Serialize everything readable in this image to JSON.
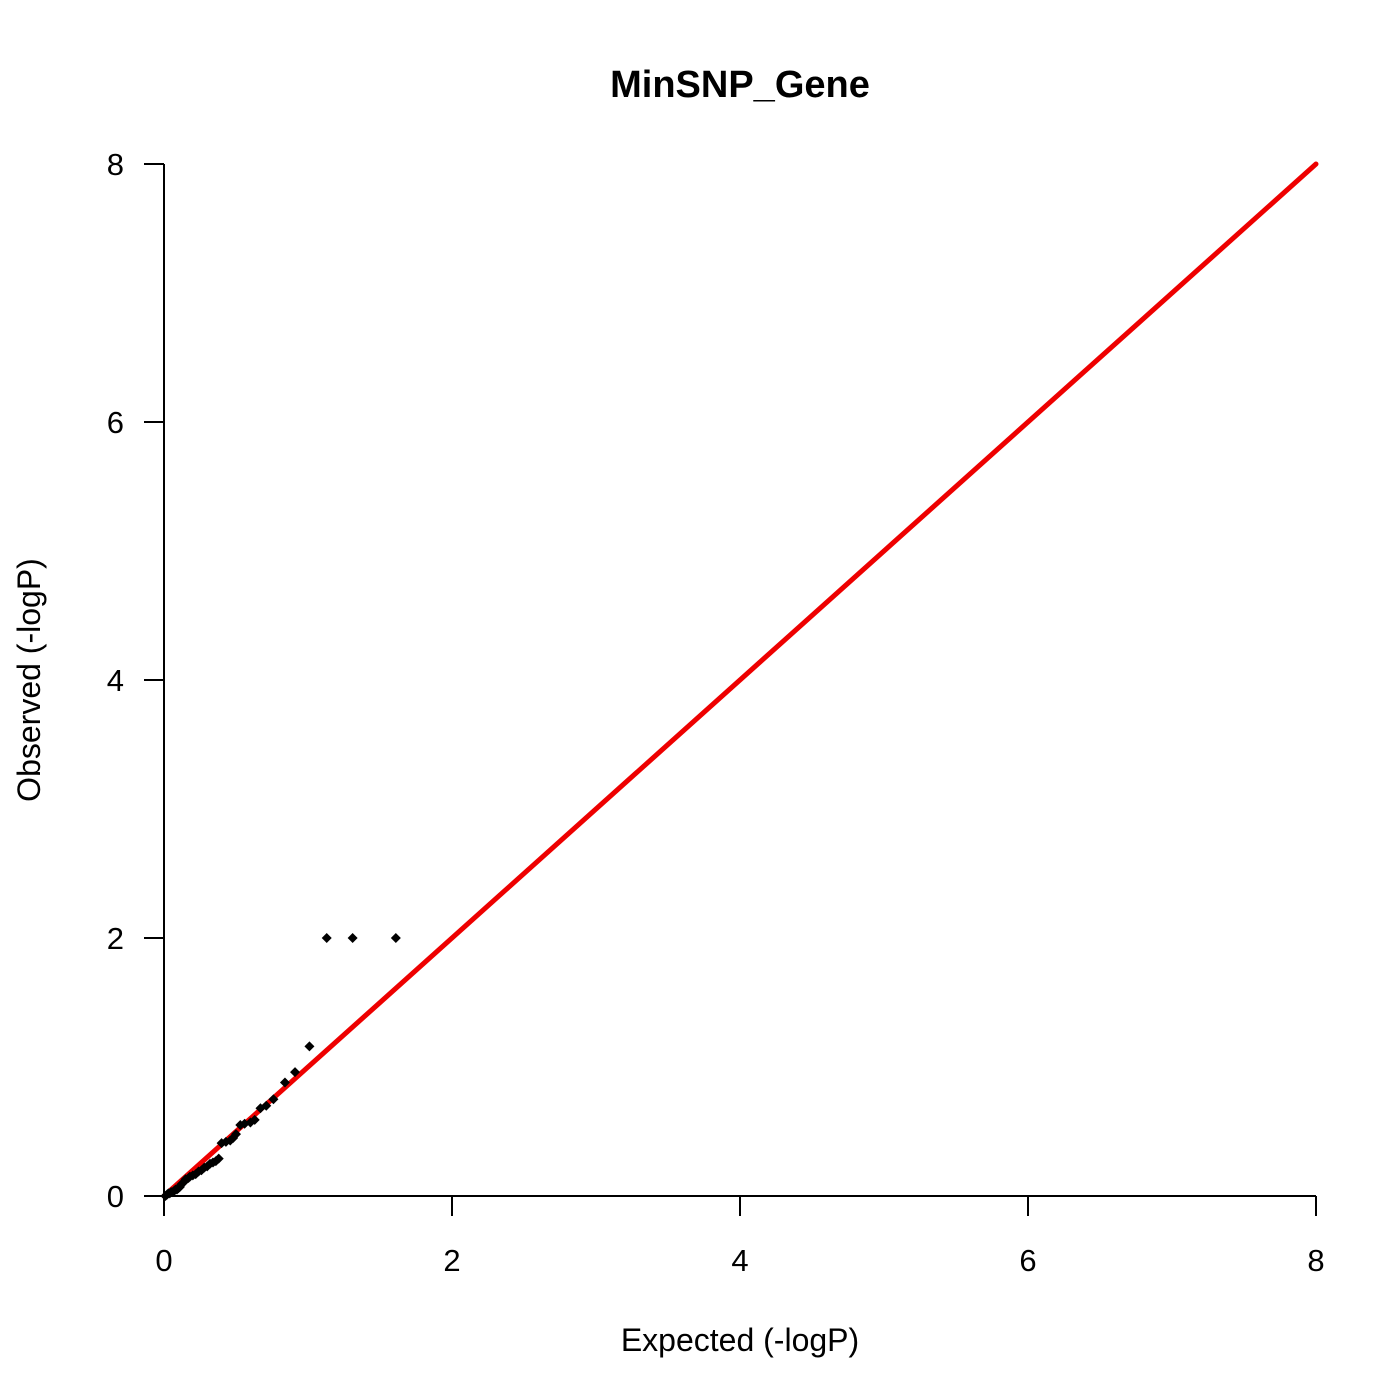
{
  "chart_data": {
    "type": "scatter",
    "title": "MinSNP_Gene",
    "xlabel": "Expected (-logP)",
    "ylabel": "Observed (-logP)",
    "xlim": [
      0,
      8
    ],
    "ylim": [
      0,
      8
    ],
    "x_ticks": [
      "0",
      "2",
      "4",
      "6",
      "8"
    ],
    "y_ticks": [
      "0",
      "2",
      "4",
      "6",
      "8"
    ],
    "grid": false,
    "reference_line": {
      "from": [
        0,
        0
      ],
      "to": [
        8,
        8
      ],
      "color": "#ee0000"
    },
    "point_color": "#000000",
    "points": [
      [
        0.01,
        0.0
      ],
      [
        0.02,
        0.01
      ],
      [
        0.03,
        0.02
      ],
      [
        0.04,
        0.02
      ],
      [
        0.05,
        0.03
      ],
      [
        0.06,
        0.03
      ],
      [
        0.07,
        0.04
      ],
      [
        0.08,
        0.05
      ],
      [
        0.09,
        0.05
      ],
      [
        0.1,
        0.06
      ],
      [
        0.11,
        0.07
      ],
      [
        0.12,
        0.09
      ],
      [
        0.14,
        0.11
      ],
      [
        0.15,
        0.13
      ],
      [
        0.17,
        0.14
      ],
      [
        0.18,
        0.15
      ],
      [
        0.2,
        0.16
      ],
      [
        0.22,
        0.17
      ],
      [
        0.24,
        0.19
      ],
      [
        0.26,
        0.2
      ],
      [
        0.28,
        0.22
      ],
      [
        0.3,
        0.23
      ],
      [
        0.32,
        0.25
      ],
      [
        0.34,
        0.26
      ],
      [
        0.36,
        0.27
      ],
      [
        0.38,
        0.29
      ],
      [
        0.4,
        0.41
      ],
      [
        0.43,
        0.42
      ],
      [
        0.46,
        0.43
      ],
      [
        0.48,
        0.45
      ],
      [
        0.5,
        0.48
      ],
      [
        0.53,
        0.55
      ],
      [
        0.56,
        0.56
      ],
      [
        0.6,
        0.57
      ],
      [
        0.63,
        0.59
      ],
      [
        0.67,
        0.68
      ],
      [
        0.71,
        0.7
      ],
      [
        0.76,
        0.75
      ],
      [
        0.84,
        0.88
      ],
      [
        0.91,
        0.96
      ],
      [
        1.01,
        1.16
      ],
      [
        1.13,
        2.0
      ],
      [
        1.31,
        2.0
      ],
      [
        1.61,
        2.0
      ]
    ]
  }
}
